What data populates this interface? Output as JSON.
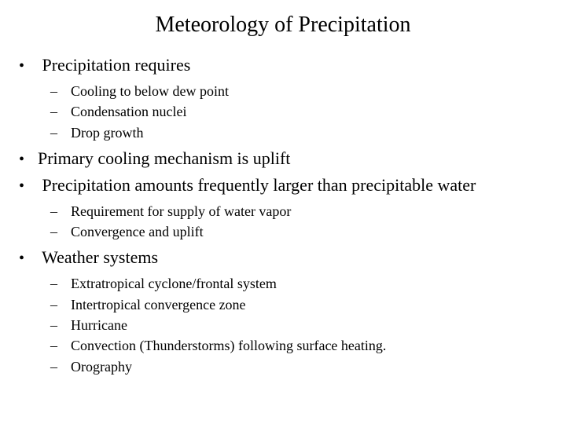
{
  "title": "Meteorology of Precipitation",
  "bullets": {
    "b1": "Precipitation requires",
    "b1_sub": {
      "s1": "Cooling to below dew point",
      "s2": "Condensation nuclei",
      "s3": "Drop growth"
    },
    "b2": "Primary cooling mechanism is uplift",
    "b3": "Precipitation amounts frequently larger than precipitable water",
    "b3_sub": {
      "s1": "Requirement for supply of water vapor",
      "s2": "Convergence and uplift"
    },
    "b4": "Weather systems",
    "b4_sub": {
      "s1": "Extratropical cyclone/frontal system",
      "s2": "Intertropical convergence zone",
      "s3": "Hurricane",
      "s4": "Convection (Thunderstorms) following surface heating.",
      "s5": "Orography"
    }
  },
  "styling": {
    "background_color": "#ffffff",
    "text_color": "#000000",
    "font_family": "Times New Roman",
    "title_fontsize": 28,
    "level1_fontsize": 22,
    "level2_fontsize": 18,
    "level1_marker": "•",
    "level2_marker": "–"
  }
}
